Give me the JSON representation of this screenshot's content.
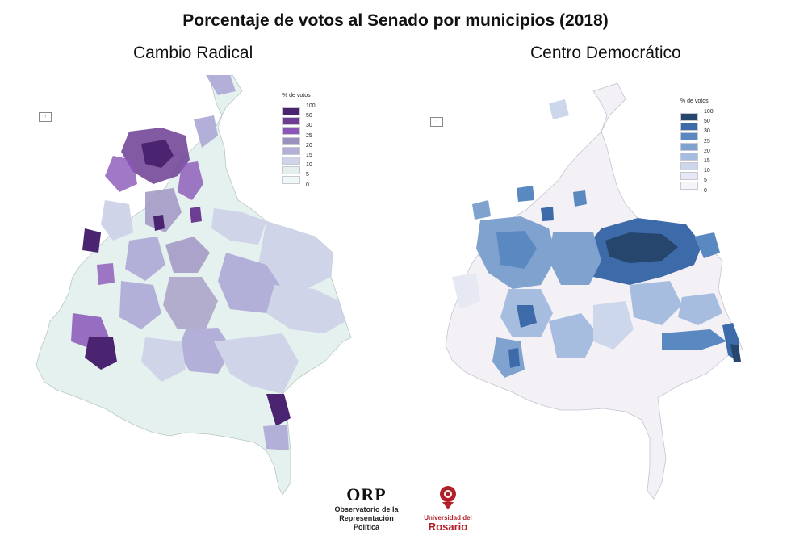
{
  "title": "Porcentaje de votos al Senado por municipios (2018)",
  "maps": [
    {
      "subtitle": "Cambio Radical",
      "legend_title": "% de votos",
      "legend_labels": [
        "100",
        "50",
        "30",
        "25",
        "20",
        "15",
        "10",
        "5",
        "0"
      ],
      "colors": [
        "#4a2470",
        "#6c3d93",
        "#8a56b8",
        "#9c90bf",
        "#b2b0d8",
        "#cfd4e8",
        "#e2efec",
        "#eef8f6"
      ],
      "base_color": "#e4f1ee",
      "north_icon": "north-arrow-icon"
    },
    {
      "subtitle": "Centro Democrático",
      "legend_title": "% de votos",
      "legend_labels": [
        "100",
        "50",
        "30",
        "25",
        "20",
        "15",
        "10",
        "5",
        "0"
      ],
      "colors": [
        "#26466e",
        "#3d6aa8",
        "#5a88c1",
        "#7fa2cf",
        "#a7bde0",
        "#cdd7ec",
        "#e6e9f3",
        "#f5f4f8"
      ],
      "base_color": "#f3f1f5",
      "north_icon": "north-arrow-icon"
    }
  ],
  "footer": {
    "orp_logo": "ORP",
    "orp_line1": "Observatorio de la",
    "orp_line2": "Representación Política",
    "ur_line1": "Universidad del",
    "ur_line2": "Rosario",
    "ur_color": "#b4202a"
  }
}
